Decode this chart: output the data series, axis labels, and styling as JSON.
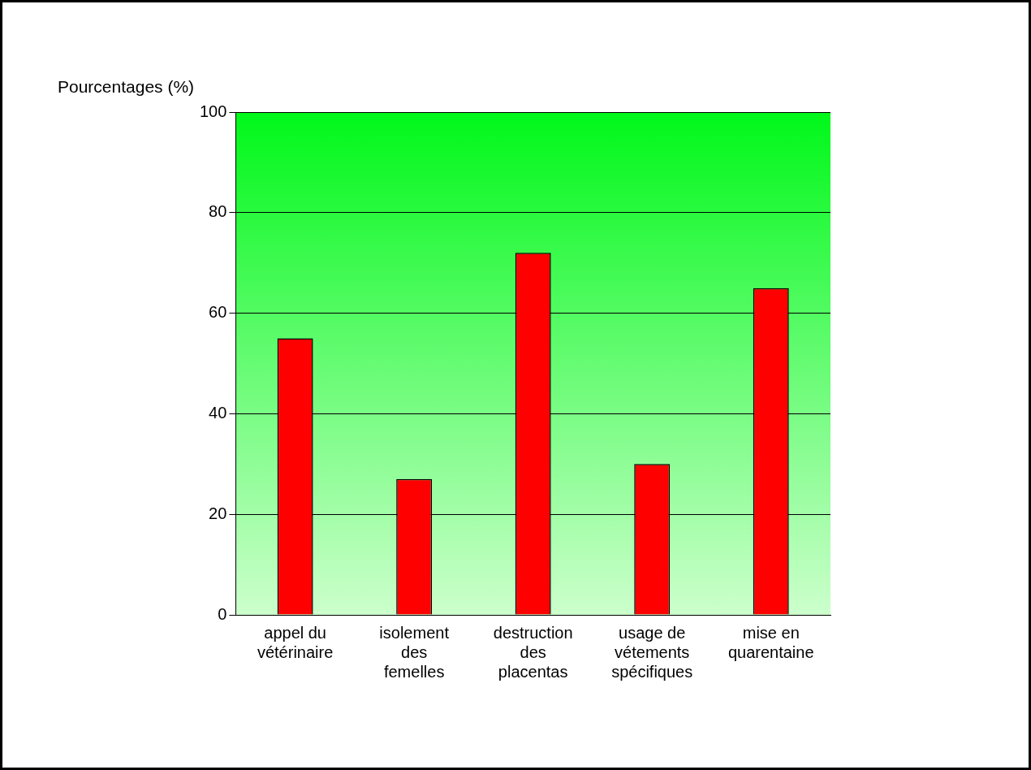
{
  "chart_data": {
    "type": "bar",
    "ylabel": "Pourcentages (%)",
    "categories": [
      "appel du vétérinaire",
      "isolement des femelles",
      "destruction des placentas",
      "usage de vétements spécifiques",
      "mise en quarentaine"
    ],
    "values": [
      55,
      27,
      72,
      30,
      65
    ],
    "color": "#ff0000",
    "ylim": [
      0,
      100
    ],
    "yticks": [
      0,
      20,
      40,
      60,
      80,
      100
    ],
    "grid": "y"
  }
}
